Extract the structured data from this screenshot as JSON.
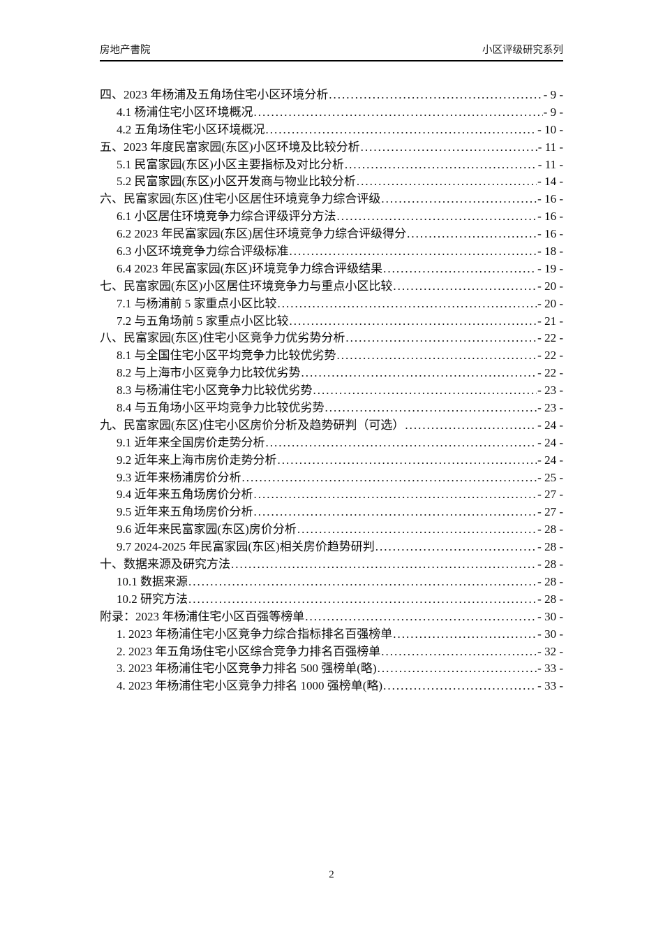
{
  "header": {
    "left": "房地产書院",
    "right": "小区评级研究系列"
  },
  "toc": {
    "entries": [
      {
        "level": 1,
        "text": "四、2023 年杨浦及五角场住宅小区环境分析",
        "page": "- 9 -"
      },
      {
        "level": 2,
        "text": "4.1 杨浦住宅小区环境概况",
        "page": "- 9 -"
      },
      {
        "level": 2,
        "text": "4.2 五角场住宅小区环境概况",
        "page": "- 10 -"
      },
      {
        "level": 1,
        "text": "五、2023 年度民富家园(东区)小区环境及比较分析",
        "page": "- 11 -"
      },
      {
        "level": 2,
        "text": "5.1 民富家园(东区)小区主要指标及对比分析",
        "page": "- 11 -"
      },
      {
        "level": 2,
        "text": "5.2 民富家园(东区)小区开发商与物业比较分析",
        "page": "- 14 -"
      },
      {
        "level": 1,
        "text": "六、民富家园(东区)住宅小区居住环境竞争力综合评级",
        "page": "- 16 -"
      },
      {
        "level": 2,
        "text": "6.1 小区居住环境竞争力综合评级评分方法",
        "page": "- 16 -"
      },
      {
        "level": 2,
        "text": "6.2 2023 年民富家园(东区)居住环境竞争力综合评级得分",
        "page": "- 16 -"
      },
      {
        "level": 2,
        "text": "6.3 小区环境竞争力综合评级标准",
        "page": "- 18 -"
      },
      {
        "level": 2,
        "text": "6.4 2023 年民富家园(东区)环境竞争力综合评级结果",
        "page": "- 19 -"
      },
      {
        "level": 1,
        "text": "七、民富家园(东区)小区居住环境竞争力与重点小区比较",
        "page": "- 20 -"
      },
      {
        "level": 2,
        "text": "7.1 与杨浦前 5 家重点小区比较",
        "page": "- 20 -"
      },
      {
        "level": 2,
        "text": "7.2 与五角场前 5 家重点小区比较",
        "page": "- 21 -"
      },
      {
        "level": 1,
        "text": "八、民富家园(东区)住宅小区竞争力优劣势分析",
        "page": "- 22 -"
      },
      {
        "level": 2,
        "text": "8.1 与全国住宅小区平均竞争力比较优劣势",
        "page": "- 22 -"
      },
      {
        "level": 2,
        "text": "8.2 与上海市小区竞争力比较优劣势",
        "page": "- 22 -"
      },
      {
        "level": 2,
        "text": "8.3 与杨浦住宅小区竞争力比较优劣势",
        "page": "- 23 -"
      },
      {
        "level": 2,
        "text": "8.4 与五角场小区平均竞争力比较优劣势",
        "page": "- 23 -"
      },
      {
        "level": 1,
        "text": "九、民富家园(东区)住宅小区房价分析及趋势研判（可选） ",
        "page": "- 24 -"
      },
      {
        "level": 2,
        "text": "9.1 近年来全国房价走势分析",
        "page": "- 24 -"
      },
      {
        "level": 2,
        "text": "9.2 近年来上海市房价走势分析",
        "page": "- 24 -"
      },
      {
        "level": 2,
        "text": "9.3 近年来杨浦房价分析",
        "page": "- 25 -"
      },
      {
        "level": 2,
        "text": "9.4 近年来五角场房价分析",
        "page": "- 27 -"
      },
      {
        "level": 2,
        "text": "9.5 近年来五角场房价分析",
        "page": "- 27 -"
      },
      {
        "level": 2,
        "text": "9.6 近年来民富家园(东区)房价分析",
        "page": "- 28 -"
      },
      {
        "level": 2,
        "text": "9.7 2024-2025 年民富家园(东区)相关房价趋势研判",
        "page": "- 28 -"
      },
      {
        "level": 1,
        "text": "十、数据来源及研究方法",
        "page": "- 28 -"
      },
      {
        "level": 2,
        "text": "10.1 数据来源",
        "page": "- 28 -"
      },
      {
        "level": 2,
        "text": "10.2 研究方法",
        "page": "- 28 -"
      },
      {
        "level": 1,
        "text": "附录：2023 年杨浦住宅小区百强等榜单",
        "page": "- 30 -"
      },
      {
        "level": 2,
        "text": "1. 2023 年杨浦住宅小区竞争力综合指标排名百强榜单",
        "page": "- 30 -"
      },
      {
        "level": 2,
        "text": "2. 2023 年五角场住宅小区综合竞争力排名百强榜单",
        "page": "- 32 -"
      },
      {
        "level": 2,
        "text": "3. 2023 年杨浦住宅小区竞争力排名 500 强榜单(略)",
        "page": "- 33 -"
      },
      {
        "level": 2,
        "text": "4. 2023 年杨浦住宅小区竞争力排名 1000 强榜单(略)",
        "page": "- 33 -"
      }
    ]
  },
  "footer": {
    "page_number": "2"
  }
}
